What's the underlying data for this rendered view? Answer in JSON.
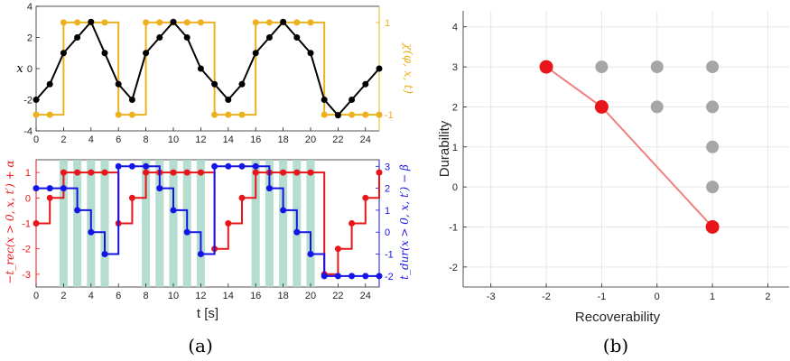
{
  "captions": {
    "a": "(a)",
    "b": "(b)"
  },
  "colors": {
    "black": "#000000",
    "gold": "#EDB120",
    "red": "#E8161A",
    "blue": "#1414E6",
    "teal": "#A8D8C8",
    "gray": "#A6A6A6",
    "salmon": "#F08080"
  },
  "chart_data": [
    {
      "id": "top",
      "type": "line",
      "xlim": [
        0,
        25
      ],
      "ylim_left": [
        -4,
        4
      ],
      "ylim_right": [
        -1.35,
        1.35
      ],
      "xticks": [
        "0",
        "2",
        "4",
        "6",
        "8",
        "10",
        "12",
        "14",
        "16",
        "18",
        "20",
        "22",
        "24"
      ],
      "yticks_left": [
        "-4",
        "-2",
        "0",
        "2",
        "4"
      ],
      "yticks_right": [
        "-1",
        "1"
      ],
      "ylabel": "x",
      "ylabel_right": "χ(φ, x, t)",
      "series": [
        {
          "axis": "left",
          "color": "#000000",
          "x": [
            0,
            1,
            2,
            3,
            4,
            5,
            6,
            7,
            8,
            9,
            10,
            11,
            12,
            13,
            14,
            15,
            16,
            17,
            18,
            19,
            20,
            21,
            22,
            23,
            24,
            25
          ],
          "y": [
            -2,
            -1,
            1,
            2,
            3,
            1,
            -1,
            -2,
            1,
            2,
            3,
            2,
            0,
            -1,
            -2,
            -1,
            1,
            2,
            3,
            2,
            1,
            -2,
            -3,
            -2,
            -1,
            0
          ]
        },
        {
          "axis": "right",
          "step": true,
          "color": "#EDB120",
          "x": [
            0,
            1,
            2,
            3,
            4,
            5,
            6,
            7,
            8,
            9,
            10,
            11,
            12,
            13,
            14,
            15,
            16,
            17,
            18,
            19,
            20,
            21,
            22,
            23,
            24,
            25
          ],
          "y": [
            -1,
            -1,
            1,
            1,
            1,
            1,
            -1,
            -1,
            1,
            1,
            1,
            1,
            1,
            -1,
            -1,
            -1,
            1,
            1,
            1,
            1,
            1,
            -1,
            -1,
            -1,
            -1,
            -1
          ]
        }
      ]
    },
    {
      "id": "bottom",
      "type": "line",
      "xlim": [
        0,
        25
      ],
      "ylim_left": [
        -3.5,
        1.5
      ],
      "ylim_right": [
        -2.5,
        3.3
      ],
      "xticks": [
        "0",
        "2",
        "4",
        "6",
        "8",
        "10",
        "12",
        "14",
        "16",
        "18",
        "20",
        "22",
        "24"
      ],
      "yticks_left": [
        "-3",
        "-2",
        "-1",
        "0",
        "1"
      ],
      "yticks_right": [
        "-2",
        "-1",
        "0",
        "1",
        "2",
        "3"
      ],
      "xlabel": "t [s]",
      "ylabel": "−t_rec(x > 0, x, t′) + α",
      "ylabel_right": "t_dur(x > 0, x, t′) − β",
      "shaded_intervals": [
        [
          1.7,
          2.3
        ],
        [
          2.7,
          3.3
        ],
        [
          3.7,
          4.3
        ],
        [
          4.7,
          5.3
        ],
        [
          7.7,
          8.3
        ],
        [
          8.7,
          9.3
        ],
        [
          9.7,
          10.3
        ],
        [
          10.7,
          11.3
        ],
        [
          11.7,
          12.3
        ],
        [
          15.7,
          16.3
        ],
        [
          16.7,
          17.3
        ],
        [
          17.7,
          18.3
        ],
        [
          18.7,
          19.3
        ],
        [
          19.7,
          20.3
        ]
      ],
      "series": [
        {
          "axis": "left",
          "step": true,
          "color": "#E8161A",
          "x": [
            0,
            1,
            2,
            3,
            4,
            5,
            6,
            7,
            8,
            9,
            10,
            11,
            12,
            13,
            14,
            15,
            16,
            17,
            18,
            19,
            20,
            21,
            22,
            23,
            24,
            25
          ],
          "y": [
            -1,
            0,
            1,
            1,
            1,
            1,
            -1,
            0,
            1,
            1,
            1,
            1,
            1,
            -2,
            -1,
            0,
            1,
            1,
            1,
            1,
            1,
            -3,
            -2,
            -1,
            0,
            1
          ]
        },
        {
          "axis": "right",
          "step": true,
          "color": "#1414E6",
          "x": [
            0,
            1,
            2,
            3,
            4,
            5,
            6,
            7,
            8,
            9,
            10,
            11,
            12,
            13,
            14,
            15,
            16,
            17,
            18,
            19,
            20,
            21,
            22,
            23,
            24,
            25
          ],
          "y": [
            2,
            2,
            2,
            1,
            0,
            -1,
            3,
            3,
            3,
            2,
            1,
            0,
            -1,
            3,
            3,
            3,
            3,
            2,
            1,
            0,
            -1,
            -2,
            -2,
            -2,
            -2,
            -2
          ]
        }
      ]
    },
    {
      "id": "b",
      "type": "scatter",
      "xlim": [
        -3.5,
        2.4
      ],
      "ylim": [
        -2.5,
        4.4
      ],
      "xticks": [
        "-3",
        "-2",
        "-1",
        "0",
        "1",
        "2"
      ],
      "yticks": [
        "-2",
        "-1",
        "0",
        "1",
        "2",
        "3",
        "4"
      ],
      "xlabel": "Recoverability",
      "ylabel": "Durability",
      "gray_points": [
        [
          -1,
          3
        ],
        [
          0,
          3
        ],
        [
          1,
          3
        ],
        [
          0,
          2
        ],
        [
          1,
          2
        ],
        [
          1,
          1
        ],
        [
          1,
          0
        ]
      ],
      "red_points": [
        [
          -2,
          3
        ],
        [
          -1,
          2
        ],
        [
          1,
          -1
        ]
      ]
    }
  ]
}
